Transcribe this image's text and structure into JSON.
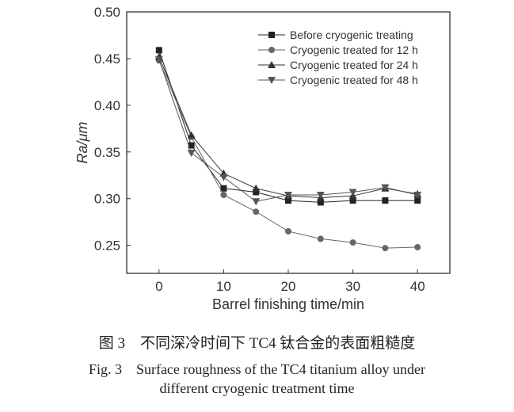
{
  "chart_data": {
    "type": "line",
    "xlabel": "Barrel finishing time/min",
    "ylabel": "Ra/μm",
    "xlim": [
      -5,
      45
    ],
    "ylim": [
      0.22,
      0.5
    ],
    "xticks": [
      0,
      10,
      20,
      30,
      40
    ],
    "yticks": [
      0.25,
      0.3,
      0.35,
      0.4,
      0.45,
      0.5
    ],
    "ytick_labels": [
      "0.25",
      "0.30",
      "0.35",
      "0.40",
      "0.45",
      "0.50"
    ],
    "grid": false,
    "legend_position": "top-right",
    "x": [
      0,
      5,
      10,
      15,
      20,
      25,
      30,
      35,
      40
    ],
    "series": [
      {
        "name": "Before cryogenic treating",
        "marker": "square",
        "color": "#222222",
        "values": [
          0.459,
          0.357,
          0.311,
          0.307,
          0.298,
          0.296,
          0.298,
          0.298,
          0.298
        ]
      },
      {
        "name": "Cryogenic treated for 12 h",
        "marker": "circle",
        "color": "#666666",
        "values": [
          0.448,
          0.366,
          0.304,
          0.286,
          0.265,
          0.257,
          0.253,
          0.247,
          0.248
        ]
      },
      {
        "name": "Cryogenic treated for 24 h",
        "marker": "triangle-up",
        "color": "#333333",
        "values": [
          0.452,
          0.368,
          0.327,
          0.311,
          0.303,
          0.301,
          0.303,
          0.311,
          0.305
        ]
      },
      {
        "name": "Cryogenic treated for 48 h",
        "marker": "triangle-down",
        "color": "#555555",
        "values": [
          0.449,
          0.349,
          0.323,
          0.297,
          0.304,
          0.304,
          0.307,
          0.312,
          0.304
        ]
      }
    ]
  },
  "caption": {
    "cn": "图 3　不同深冷时间下 TC4 钛合金的表面粗糙度",
    "en_line1": "Fig. 3　Surface roughness of the TC4 titanium alloy under",
    "en_line2": "different cryogenic treatment time"
  }
}
